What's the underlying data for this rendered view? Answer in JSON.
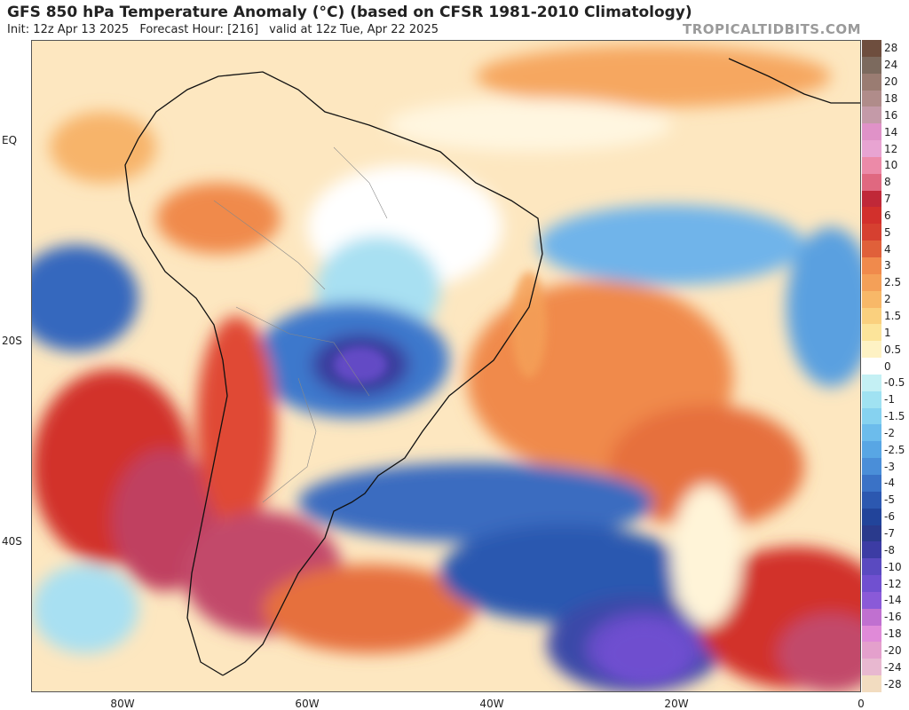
{
  "header": {
    "title": "GFS 850 hPa Temperature Anomaly (°C) (based on CFSR 1981-2010 Climatology)",
    "init": "Init: 12z Apr 13 2025",
    "forecast_hour": "Forecast Hour: [216]",
    "valid": "valid at 12z Tue, Apr 22 2025",
    "credit": "TROPICALTIDBITS.COM"
  },
  "map": {
    "lat_labels": [
      "EQ",
      "20S",
      "40S"
    ],
    "lon_labels": [
      "80W",
      "60W",
      "40W",
      "20W",
      "0"
    ]
  },
  "colorbar": {
    "labels": [
      "28",
      "24",
      "20",
      "18",
      "16",
      "14",
      "12",
      "10",
      "8",
      "7",
      "6",
      "5",
      "4",
      "3",
      "2.5",
      "2",
      "1.5",
      "1",
      "0.5",
      "0",
      "-0.5",
      "-1",
      "-1.5",
      "-2",
      "-2.5",
      "-3",
      "-4",
      "-5",
      "-6",
      "-7",
      "-8",
      "-10",
      "-12",
      "-14",
      "-16",
      "-18",
      "-20",
      "-24",
      "-28"
    ],
    "colors": [
      "#6e4e3e",
      "#7c6a5e",
      "#9a7c72",
      "#b08c8a",
      "#c49aa8",
      "#e092c8",
      "#e8a4d2",
      "#ec8aa8",
      "#e06880",
      "#c02838",
      "#d2302c",
      "#d64030",
      "#e0603a",
      "#f08a4c",
      "#f4a058",
      "#f8b868",
      "#fad07e",
      "#fce49a",
      "#fef2c4",
      "#ffffff",
      "#c4f0f4",
      "#a0e2f2",
      "#86d2f0",
      "#6cbcec",
      "#58a6e4",
      "#4a8ed8",
      "#3a72c6",
      "#2c58b0",
      "#22449a",
      "#2a3a8c",
      "#3c3ca4",
      "#5a4ac0",
      "#7050d0",
      "#8a5ad8",
      "#c070d0",
      "#e08ad8",
      "#e4a0cc",
      "#e8b8d0",
      "#f2dcc0"
    ]
  }
}
